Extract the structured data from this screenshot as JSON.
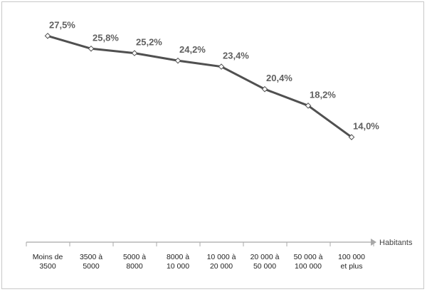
{
  "chart_data": {
    "type": "line",
    "categories": [
      [
        "Moins de",
        "3500"
      ],
      [
        "3500 à",
        "5000"
      ],
      [
        "5000 à",
        "8000"
      ],
      [
        "8000 à",
        "10 000"
      ],
      [
        "10 000 à",
        "20 000"
      ],
      [
        "20 000 à",
        "50 000"
      ],
      [
        "50 000 à",
        "100 000"
      ],
      [
        "100 000",
        "et plus"
      ]
    ],
    "values": [
      27.5,
      25.8,
      25.2,
      24.2,
      23.4,
      20.4,
      18.2,
      14.0
    ],
    "value_labels": [
      "27,5%",
      "25,8%",
      "25,2%",
      "24,2%",
      "23,4%",
      "20,4%",
      "18,2%",
      "14,0%"
    ],
    "xlabel": "Habitants",
    "ylabel": "",
    "ylim": [
      0,
      32
    ],
    "grid": false,
    "legend": "none",
    "colors": {
      "line": "#505050",
      "marker_fill": "#ffffff",
      "axis": "#a8a8a8",
      "label": "#606060"
    }
  }
}
